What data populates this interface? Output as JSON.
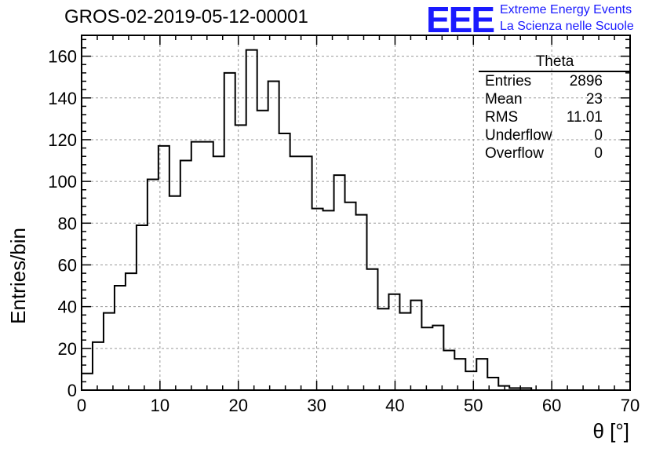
{
  "title": "GROS-02-2019-05-12-00001",
  "logo": {
    "mark": "EEE",
    "line1": "Extreme Energy Events",
    "line2": "La Scienza nelle Scuole",
    "color": "#1a1aff"
  },
  "stats": {
    "title": "Theta",
    "rows": [
      {
        "label": "Entries",
        "value": "2896"
      },
      {
        "label": "Mean",
        "value": "23"
      },
      {
        "label": "RMS",
        "value": "11.01"
      },
      {
        "label": "Underflow",
        "value": "0"
      },
      {
        "label": "Overflow",
        "value": "0"
      }
    ]
  },
  "chart_data": {
    "type": "histogram",
    "xlabel": "θ [°]",
    "ylabel": "Entries/bin",
    "xlim": [
      0,
      70
    ],
    "ylim": [
      0,
      170
    ],
    "xticks": [
      0,
      10,
      20,
      30,
      40,
      50,
      60,
      70
    ],
    "yticks": [
      0,
      20,
      40,
      60,
      80,
      100,
      120,
      140,
      160
    ],
    "grid": true,
    "bin_width": 1.4,
    "bin_edges_start": 0,
    "values": [
      8,
      23,
      37,
      50,
      56,
      79,
      101,
      117,
      93,
      110,
      119,
      119,
      112,
      152,
      127,
      163,
      134,
      148,
      123,
      112,
      112,
      87,
      86,
      103,
      90,
      84,
      58,
      39,
      46,
      37,
      43,
      30,
      31,
      19,
      15,
      9,
      15,
      6,
      2,
      1,
      1,
      0,
      0,
      0,
      0,
      0,
      0,
      0,
      0,
      0
    ]
  }
}
